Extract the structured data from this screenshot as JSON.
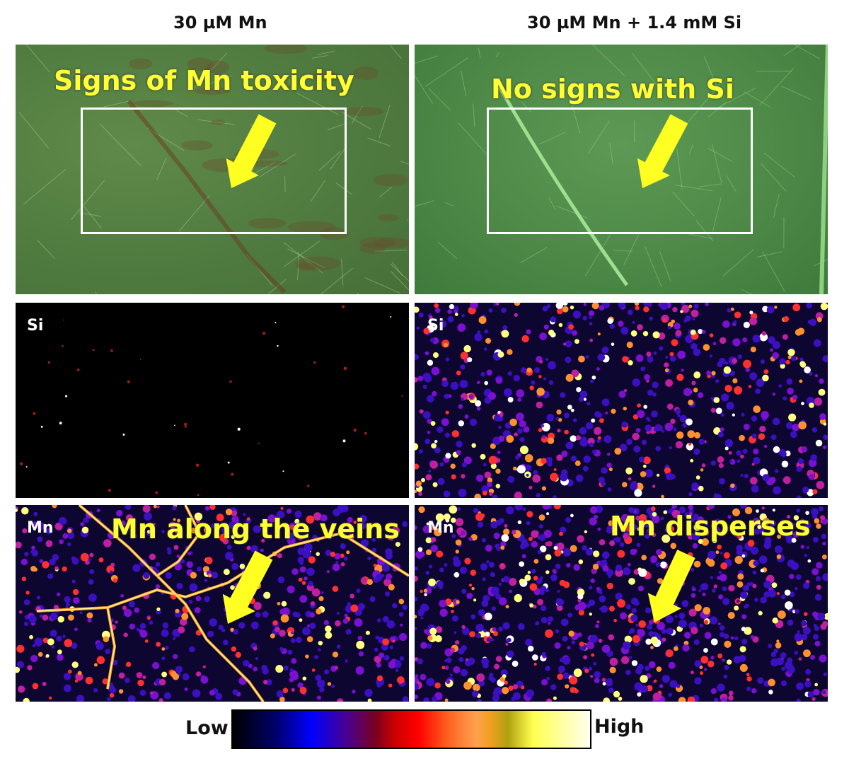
{
  "columns": {
    "left_title": "30 µM Mn",
    "right_title": "30 µM Mn + 1.4 mM Si"
  },
  "panels": {
    "leaf_left_annotation": "Signs of Mn toxicity",
    "leaf_right_annotation": "No signs with Si",
    "si_label": "Si",
    "mn_label": "Mn",
    "mn_left_annotation": "Mn along the veins",
    "mn_right_annotation": "Mn disperses"
  },
  "colorbar": {
    "low_label": "Low",
    "high_label": "High",
    "colormap": [
      "#000000",
      "#0000ff",
      "#ff0000",
      "#ffa050",
      "#ffff50",
      "#fffff0"
    ]
  },
  "colors": {
    "annotation": "#ffff33",
    "arrow": "#ffff22"
  }
}
